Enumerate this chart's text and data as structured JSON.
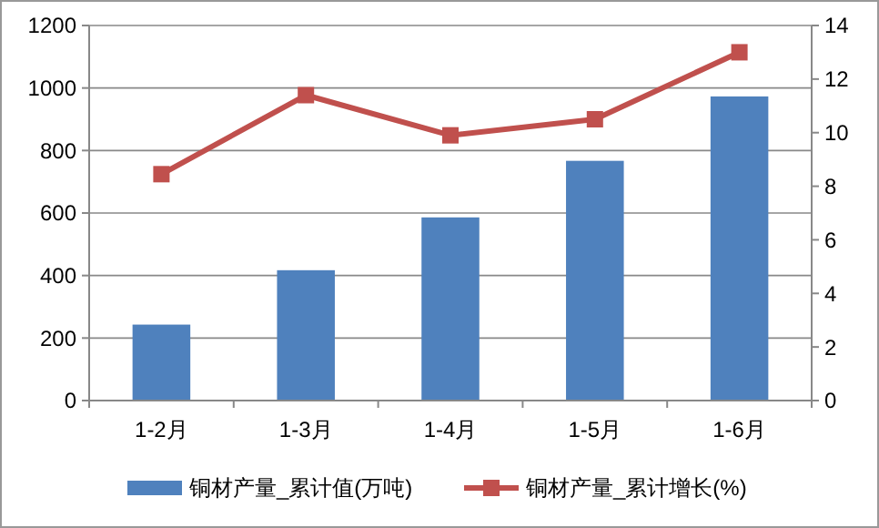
{
  "chart_data": {
    "type": "bar",
    "categories": [
      "1-2月",
      "1-3月",
      "1-4月",
      "1-5月",
      "1-6月"
    ],
    "series": [
      {
        "name": "铜材产量_累计值(万吨)",
        "color": "#4f81bd",
        "values": [
          243,
          417,
          586,
          767,
          973
        ]
      },
      {
        "name": "铜材产量_累计增长(%)",
        "type": "line",
        "axis": "y2",
        "color": "#c0504d",
        "marker": "square",
        "values": [
          8.45,
          11.4,
          9.9,
          10.5,
          13.0
        ]
      }
    ],
    "ylim": [
      0,
      1200
    ],
    "yticks": [
      0,
      200,
      400,
      600,
      800,
      1000,
      1200
    ],
    "y2lim": [
      0,
      14
    ],
    "y2ticks": [
      0,
      2,
      4,
      6,
      8,
      10,
      12,
      14
    ],
    "grid": "y",
    "legend": "bottom"
  }
}
